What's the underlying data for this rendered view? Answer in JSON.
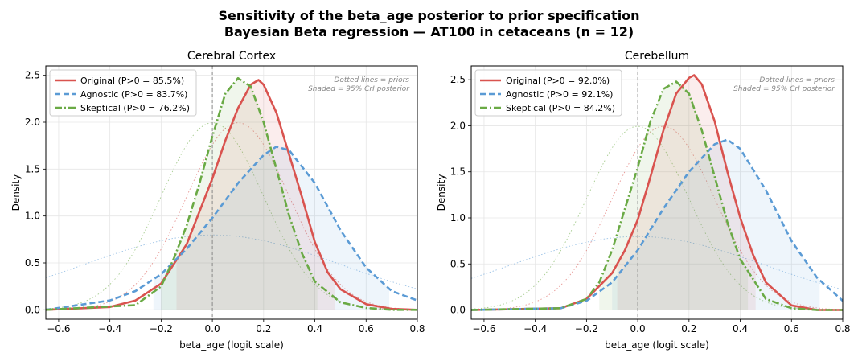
{
  "title_line1": "Sensitivity of the beta_age posterior to prior specification",
  "title_line2": "Bayesian Beta regression — AT100 in cetaceans (n = 12)",
  "colors": {
    "original": "#d9534f",
    "agnostic": "#5b9bd5",
    "skeptical": "#6aaa45"
  },
  "chart_data": [
    {
      "type": "line",
      "title": "Cerebral Cortex",
      "xlabel": "beta_age (logit scale)",
      "ylabel": "Density",
      "xlim": [
        -0.65,
        0.8
      ],
      "ylim": [
        -0.1,
        2.6
      ],
      "xticks": [
        "−0.6",
        "−0.4",
        "−0.2",
        "0.0",
        "0.2",
        "0.4",
        "0.6",
        "0.8"
      ],
      "yticks": [
        "0.0",
        "0.5",
        "1.0",
        "1.5",
        "2.0",
        "2.5"
      ],
      "grid": true,
      "legend_position": "top-left",
      "note_line1": "Dotted lines = priors",
      "note_line2": "Shaded = 95% CrI posterior",
      "zero_line": 0,
      "series": [
        {
          "name": "Original  (P>0 = 85.5%)",
          "style": "solid",
          "color": "#d9534f",
          "x": [
            -0.65,
            -0.4,
            -0.3,
            -0.2,
            -0.1,
            0.0,
            0.05,
            0.1,
            0.15,
            0.18,
            0.2,
            0.25,
            0.3,
            0.35,
            0.4,
            0.45,
            0.5,
            0.6,
            0.7,
            0.8
          ],
          "y": [
            0.0,
            0.03,
            0.1,
            0.28,
            0.7,
            1.4,
            1.8,
            2.15,
            2.4,
            2.45,
            2.4,
            2.1,
            1.65,
            1.2,
            0.72,
            0.4,
            0.22,
            0.06,
            0.01,
            0.0
          ],
          "ci": [
            -0.14,
            0.48
          ]
        },
        {
          "name": "Agnostic  (P>0 = 83.7%)",
          "style": "dashed",
          "color": "#5b9bd5",
          "x": [
            -0.65,
            -0.4,
            -0.3,
            -0.2,
            -0.1,
            0.0,
            0.1,
            0.2,
            0.25,
            0.3,
            0.4,
            0.5,
            0.6,
            0.7,
            0.8
          ],
          "y": [
            0.0,
            0.1,
            0.2,
            0.38,
            0.65,
            0.98,
            1.35,
            1.65,
            1.74,
            1.7,
            1.35,
            0.85,
            0.45,
            0.2,
            0.1
          ],
          "ci": [
            -0.23,
            0.69
          ]
        },
        {
          "name": "Skeptical  (P>0 = 76.2%)",
          "style": "dashdot",
          "color": "#6aaa45",
          "x": [
            -0.65,
            -0.3,
            -0.2,
            -0.15,
            -0.1,
            -0.05,
            0.0,
            0.05,
            0.1,
            0.15,
            0.2,
            0.25,
            0.3,
            0.35,
            0.4,
            0.5,
            0.6,
            0.7,
            0.8
          ],
          "y": [
            0.0,
            0.05,
            0.25,
            0.55,
            0.9,
            1.35,
            1.85,
            2.3,
            2.47,
            2.38,
            2.0,
            1.5,
            1.0,
            0.6,
            0.3,
            0.08,
            0.02,
            0.0,
            0.0
          ],
          "ci": [
            -0.2,
            0.41
          ]
        }
      ],
      "priors": [
        {
          "color": "#d9534f",
          "mean": 0.1,
          "sd": 0.2
        },
        {
          "color": "#5b9bd5",
          "mean": 0.0,
          "sd": 0.5
        },
        {
          "color": "#6aaa45",
          "mean": 0.0,
          "sd": 0.2
        }
      ]
    },
    {
      "type": "line",
      "title": "Cerebellum",
      "xlabel": "beta_age (logit scale)",
      "ylabel": "Density",
      "xlim": [
        -0.65,
        0.8
      ],
      "ylim": [
        -0.1,
        2.65
      ],
      "xticks": [
        "−0.6",
        "−0.4",
        "−0.2",
        "0.0",
        "0.2",
        "0.4",
        "0.6",
        "0.8"
      ],
      "yticks": [
        "0.0",
        "0.5",
        "1.0",
        "1.5",
        "2.0",
        "2.5"
      ],
      "grid": true,
      "legend_position": "top-left",
      "note_line1": "Dotted lines = priors",
      "note_line2": "Shaded = 95% CrI posterior",
      "zero_line": 0,
      "series": [
        {
          "name": "Original  (P>0 = 92.0%)",
          "style": "solid",
          "color": "#d9534f",
          "x": [
            -0.65,
            -0.3,
            -0.2,
            -0.1,
            -0.05,
            0.0,
            0.05,
            0.1,
            0.15,
            0.2,
            0.22,
            0.25,
            0.3,
            0.35,
            0.4,
            0.45,
            0.5,
            0.6,
            0.7,
            0.8
          ],
          "y": [
            0.0,
            0.02,
            0.12,
            0.4,
            0.65,
            0.98,
            1.45,
            1.95,
            2.35,
            2.52,
            2.55,
            2.45,
            2.05,
            1.5,
            1.0,
            0.6,
            0.3,
            0.05,
            0.0,
            0.0
          ],
          "ci": [
            -0.08,
            0.46
          ]
        },
        {
          "name": "Agnostic  (P>0 = 92.1%)",
          "style": "dashed",
          "color": "#5b9bd5",
          "x": [
            -0.65,
            -0.3,
            -0.2,
            -0.1,
            0.0,
            0.1,
            0.2,
            0.3,
            0.35,
            0.4,
            0.5,
            0.6,
            0.7,
            0.8
          ],
          "y": [
            0.0,
            0.02,
            0.1,
            0.3,
            0.65,
            1.1,
            1.5,
            1.8,
            1.85,
            1.75,
            1.3,
            0.75,
            0.35,
            0.1
          ],
          "ci": [
            -0.1,
            0.71
          ]
        },
        {
          "name": "Skeptical  (P>0 = 84.2%)",
          "style": "dashdot",
          "color": "#6aaa45",
          "x": [
            -0.65,
            -0.3,
            -0.2,
            -0.15,
            -0.1,
            -0.05,
            0.0,
            0.05,
            0.1,
            0.15,
            0.2,
            0.25,
            0.3,
            0.35,
            0.4,
            0.5,
            0.6,
            0.7,
            0.8
          ],
          "y": [
            0.0,
            0.02,
            0.12,
            0.3,
            0.65,
            1.1,
            1.55,
            2.05,
            2.4,
            2.48,
            2.35,
            1.95,
            1.45,
            0.95,
            0.55,
            0.12,
            0.02,
            0.0,
            0.0
          ],
          "ci": [
            -0.15,
            0.43
          ]
        }
      ],
      "priors": [
        {
          "color": "#d9534f",
          "mean": 0.1,
          "sd": 0.2
        },
        {
          "color": "#5b9bd5",
          "mean": 0.0,
          "sd": 0.5
        },
        {
          "color": "#6aaa45",
          "mean": 0.0,
          "sd": 0.2
        }
      ]
    }
  ]
}
